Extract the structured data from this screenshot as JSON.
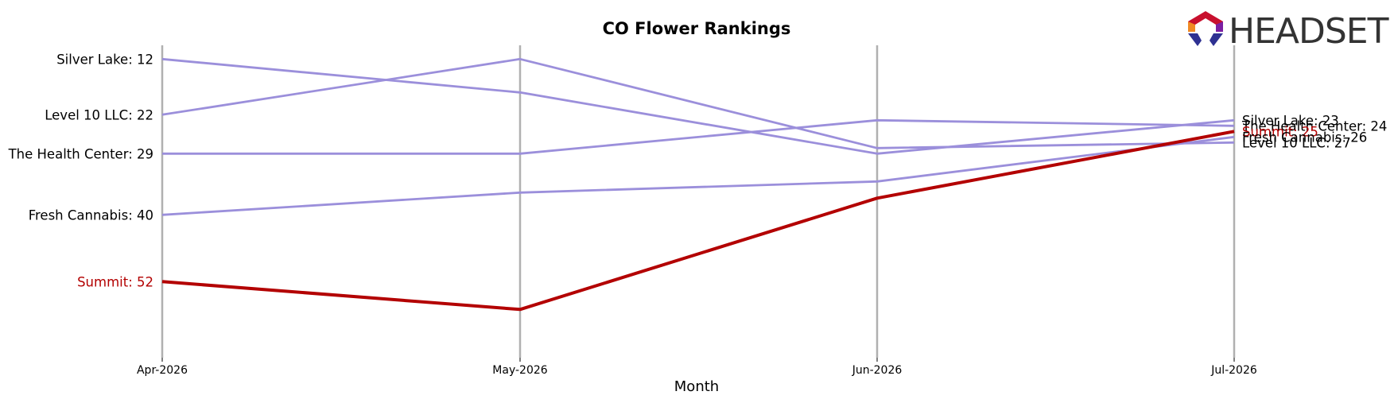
{
  "chart_data": {
    "type": "line",
    "title": "CO Flower Rankings",
    "xlabel": "Month",
    "ylabel": "",
    "x": [
      "Apr-2026",
      "May-2026",
      "Jun-2026",
      "Jul-2026"
    ],
    "y_inverted": true,
    "grid": "vertical",
    "highlight": "Summit",
    "series": [
      {
        "name": "Silver Lake",
        "values": [
          12,
          18,
          29,
          23
        ],
        "color": "#9b8fdb"
      },
      {
        "name": "Level 10 LLC",
        "values": [
          22,
          12,
          28,
          27
        ],
        "color": "#9b8fdb"
      },
      {
        "name": "The Health Center",
        "values": [
          29,
          29,
          23,
          24
        ],
        "color": "#9b8fdb"
      },
      {
        "name": "Fresh Cannabis",
        "values": [
          40,
          36,
          34,
          26
        ],
        "color": "#9b8fdb"
      },
      {
        "name": "Summit",
        "values": [
          52,
          57,
          37,
          25
        ],
        "color": "#b30000"
      }
    ],
    "start_labels": [
      "Silver Lake: 12",
      "Level 10 LLC: 22",
      "The Health Center: 29",
      "Fresh Cannabis: 40",
      "Summit: 52"
    ],
    "end_labels": [
      "Silver Lake: 23",
      "The Health Center: 24",
      "Summit: 25",
      "Fresh Cannabis: 26",
      "Level 10 LLC: 27"
    ]
  },
  "logo": {
    "text": "HEADSET"
  },
  "colors": {
    "highlight": "#b30000",
    "other": "#9b8fdb",
    "gridline": "#b0b0b0"
  }
}
